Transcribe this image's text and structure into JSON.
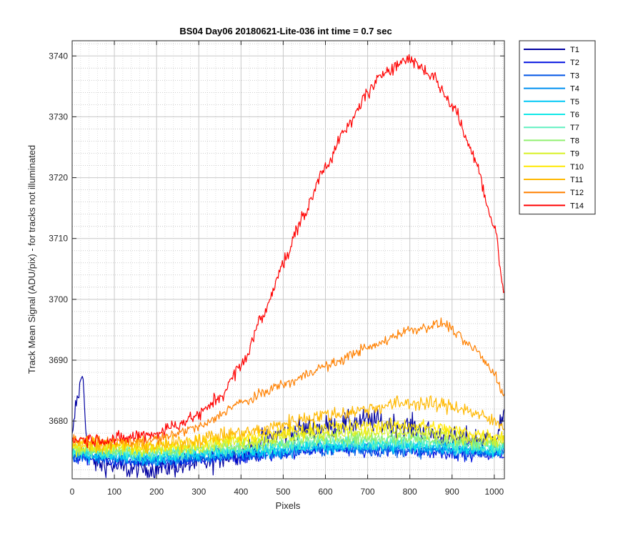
{
  "chart_data": {
    "type": "line",
    "title": "BS04 Day06 20180621-Lite-036 int time = 0.7 sec",
    "xlabel": "Pixels",
    "ylabel": "Track Mean Signal (ADU/pix) - for tracks not illuminated",
    "xlim": [
      0,
      1024
    ],
    "ylim": [
      3670.5,
      3742.5
    ],
    "xticks": [
      0,
      100,
      200,
      300,
      400,
      500,
      600,
      700,
      800,
      900,
      1000
    ],
    "yticks": [
      3680,
      3690,
      3700,
      3710,
      3720,
      3730,
      3740
    ],
    "x_minor_step": 20,
    "y_minor_step": 2,
    "grid": true,
    "minor_grid": true,
    "legend_position": "outside-top-right",
    "series": [
      {
        "name": "T1",
        "color": "#0000A0",
        "points": [
          [
            0,
            3677
          ],
          [
            10,
            3683
          ],
          [
            20,
            3686
          ],
          [
            25,
            3688
          ],
          [
            30,
            3683
          ],
          [
            35,
            3675
          ],
          [
            60,
            3673
          ],
          [
            150,
            3672
          ],
          [
            300,
            3673
          ],
          [
            400,
            3675
          ],
          [
            500,
            3678
          ],
          [
            600,
            3679
          ],
          [
            700,
            3680
          ],
          [
            800,
            3679
          ],
          [
            900,
            3677
          ],
          [
            1000,
            3677
          ],
          [
            1024,
            3681
          ]
        ]
      },
      {
        "name": "T2",
        "color": "#0010E0",
        "points": [
          [
            0,
            3674
          ],
          [
            200,
            3673
          ],
          [
            400,
            3674
          ],
          [
            600,
            3675.5
          ],
          [
            800,
            3675
          ],
          [
            1024,
            3674.5
          ]
        ]
      },
      {
        "name": "T3",
        "color": "#0055E6",
        "points": [
          [
            0,
            3674.2
          ],
          [
            200,
            3673.5
          ],
          [
            400,
            3674.3
          ],
          [
            600,
            3675.3
          ],
          [
            800,
            3675.2
          ],
          [
            1024,
            3674.8
          ]
        ]
      },
      {
        "name": "T4",
        "color": "#0090F0",
        "points": [
          [
            0,
            3674.4
          ],
          [
            200,
            3673.8
          ],
          [
            400,
            3674.6
          ],
          [
            600,
            3675.6
          ],
          [
            800,
            3675.5
          ],
          [
            1024,
            3675
          ]
        ]
      },
      {
        "name": "T5",
        "color": "#00C8F5",
        "points": [
          [
            0,
            3674.6
          ],
          [
            200,
            3674
          ],
          [
            400,
            3674.9
          ],
          [
            600,
            3675.9
          ],
          [
            800,
            3675.8
          ],
          [
            1024,
            3675.2
          ]
        ]
      },
      {
        "name": "T6",
        "color": "#10E8E8",
        "points": [
          [
            0,
            3674.8
          ],
          [
            200,
            3674.3
          ],
          [
            400,
            3675.2
          ],
          [
            600,
            3676.2
          ],
          [
            800,
            3676.1
          ],
          [
            1024,
            3675.5
          ]
        ]
      },
      {
        "name": "T7",
        "color": "#60F0C0",
        "points": [
          [
            0,
            3675
          ],
          [
            200,
            3674.6
          ],
          [
            400,
            3675.5
          ],
          [
            600,
            3676.6
          ],
          [
            800,
            3676.5
          ],
          [
            1024,
            3675.8
          ]
        ]
      },
      {
        "name": "T8",
        "color": "#90F070",
        "points": [
          [
            0,
            3675.3
          ],
          [
            200,
            3675
          ],
          [
            400,
            3676
          ],
          [
            600,
            3677.2
          ],
          [
            800,
            3677.2
          ],
          [
            1024,
            3676.2
          ]
        ]
      },
      {
        "name": "T9",
        "color": "#D8F020",
        "points": [
          [
            0,
            3675.6
          ],
          [
            200,
            3675.4
          ],
          [
            400,
            3676.6
          ],
          [
            600,
            3678
          ],
          [
            800,
            3678
          ],
          [
            1024,
            3676.8
          ]
        ]
      },
      {
        "name": "T10",
        "color": "#FFE800",
        "points": [
          [
            0,
            3676
          ],
          [
            200,
            3675.8
          ],
          [
            400,
            3677.2
          ],
          [
            600,
            3679
          ],
          [
            800,
            3679.3
          ],
          [
            1024,
            3677.5
          ]
        ]
      },
      {
        "name": "T11",
        "color": "#FFB800",
        "points": [
          [
            0,
            3676.5
          ],
          [
            200,
            3676
          ],
          [
            400,
            3678
          ],
          [
            600,
            3681
          ],
          [
            800,
            3683
          ],
          [
            900,
            3682.5
          ],
          [
            1024,
            3679.5
          ]
        ]
      },
      {
        "name": "T12",
        "color": "#FF8000",
        "points": [
          [
            0,
            3677
          ],
          [
            100,
            3676.5
          ],
          [
            200,
            3677
          ],
          [
            300,
            3679
          ],
          [
            400,
            3683
          ],
          [
            500,
            3686
          ],
          [
            600,
            3689
          ],
          [
            700,
            3692
          ],
          [
            800,
            3695
          ],
          [
            880,
            3696
          ],
          [
            950,
            3692
          ],
          [
            1000,
            3688
          ],
          [
            1024,
            3684
          ]
        ]
      },
      {
        "name": "T14",
        "color": "#FF0000",
        "points": [
          [
            0,
            3677
          ],
          [
            100,
            3677
          ],
          [
            200,
            3678
          ],
          [
            250,
            3679.5
          ],
          [
            300,
            3681
          ],
          [
            350,
            3684
          ],
          [
            400,
            3689
          ],
          [
            450,
            3697
          ],
          [
            500,
            3706
          ],
          [
            550,
            3714
          ],
          [
            600,
            3722
          ],
          [
            650,
            3728
          ],
          [
            700,
            3734
          ],
          [
            750,
            3738
          ],
          [
            800,
            3739.5
          ],
          [
            850,
            3737
          ],
          [
            900,
            3732
          ],
          [
            950,
            3724
          ],
          [
            1000,
            3712
          ],
          [
            1024,
            3701
          ]
        ]
      }
    ]
  }
}
